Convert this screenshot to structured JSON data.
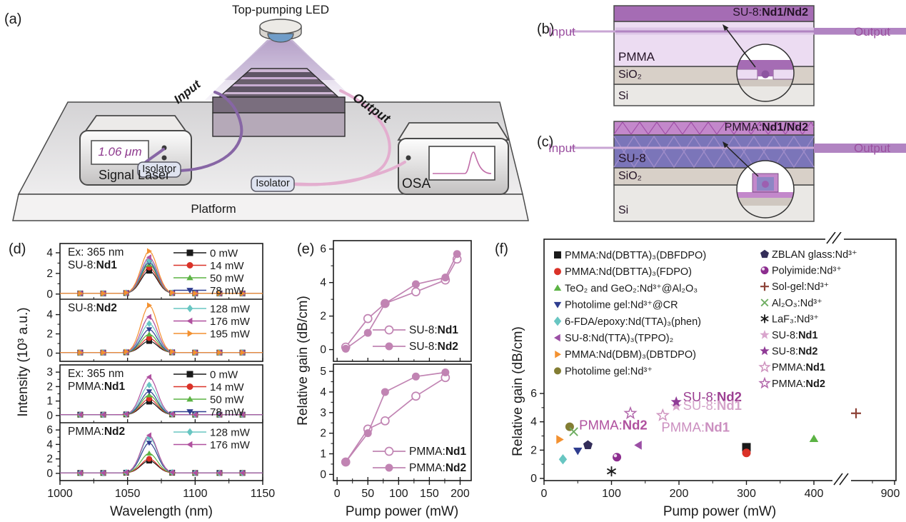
{
  "panel_a": {
    "label": "(a)",
    "led_label": "Top-pumping LED",
    "input_label": "Input",
    "output_label": "Output",
    "laser_display": "1.06 μm",
    "laser_label": "Signal Laser",
    "isolator1_label": "Isolator",
    "isolator2_label": "Isolator",
    "osa_label": "OSA",
    "platform_label": "Platform"
  },
  "panel_b": {
    "label": "(b)",
    "input_label": "Input",
    "output_label": "Output",
    "top_layer_prefix": "SU-8:",
    "top_layer_bold": "Nd1/Nd2",
    "core_layer": "PMMA",
    "oxide_layer": "SiO₂",
    "substrate_layer": "Si"
  },
  "panel_c": {
    "label": "(c)",
    "input_label": "Input",
    "output_label": "Output",
    "top_layer_prefix": "PMMA:",
    "top_layer_bold": "Nd1/Nd2",
    "core_layer": "SU-8",
    "oxide_layer": "SiO₂",
    "substrate_layer": "Si"
  },
  "chart_data": [
    {
      "id": "d",
      "panel_label": "(d)",
      "type": "line",
      "xlabel": "Wavelength (nm)",
      "ylabel": "Intensity (10³ a.u.)",
      "xlim": [
        1000,
        1150
      ],
      "xticks": [
        1000,
        1050,
        1100,
        1150
      ],
      "xminorticks": [
        1025,
        1075,
        1125
      ],
      "peak_center_nm": 1066,
      "marker_wavelengths": [
        1015,
        1032,
        1049,
        1066,
        1083,
        1100,
        1118,
        1135
      ],
      "pump_series": [
        {
          "label": "0 mW",
          "marker": "square",
          "color": "#1a1a1a"
        },
        {
          "label": "14 mW",
          "marker": "circle",
          "color": "#da3228"
        },
        {
          "label": "50 mW",
          "marker": "triangle-up",
          "color": "#5cb344"
        },
        {
          "label": "78 mW",
          "marker": "triangle-down",
          "color": "#2f3d8f"
        },
        {
          "label": "128 mW",
          "marker": "diamond",
          "color": "#68c6c2"
        },
        {
          "label": "176 mW",
          "marker": "triangle-left",
          "color": "#b0519f"
        },
        {
          "label": "195 mW",
          "marker": "triangle-right",
          "color": "#f39130"
        }
      ],
      "subplots": [
        {
          "ex_label": "Ex: 365 nm",
          "name_prefix": "SU-8:",
          "name_bold": "Nd1",
          "yticks": [
            0,
            2,
            4
          ],
          "ylim": [
            -0.5,
            4.9
          ],
          "peak_intensities": [
            2.2,
            2.5,
            2.8,
            3.0,
            3.2,
            3.5,
            4.1
          ],
          "legend_indices": [
            0,
            1,
            2,
            3
          ]
        },
        {
          "ex_label": "",
          "name_prefix": "SU-8:",
          "name_bold": "Nd2",
          "yticks": [
            0,
            2,
            4
          ],
          "ylim": [
            -0.85,
            5.6
          ],
          "peak_intensities": [
            1.2,
            1.5,
            1.9,
            2.4,
            3.0,
            3.7,
            4.9
          ],
          "legend_indices": [
            4,
            5,
            6
          ]
        },
        {
          "ex_label": "Ex: 365 nm",
          "name_prefix": "PMMA:",
          "name_bold": "Nd1",
          "yticks": [
            0,
            1,
            2,
            3
          ],
          "ylim": [
            -0.5,
            3.5
          ],
          "peak_intensities": [
            0.9,
            1.1,
            1.35,
            1.6,
            2.05,
            2.6
          ],
          "legend_indices": [
            0,
            1,
            2,
            3
          ]
        },
        {
          "ex_label": "",
          "name_prefix": "PMMA:",
          "name_bold": "Nd2",
          "yticks": [
            0,
            2,
            4,
            6
          ],
          "ylim": [
            -1,
            7
          ],
          "peak_intensities": [
            1.7,
            1.95,
            2.7,
            4.15,
            4.9,
            5.2
          ],
          "legend_indices": [
            4,
            5
          ]
        }
      ]
    },
    {
      "id": "e",
      "panel_label": "(e)",
      "type": "line",
      "xlabel": "Pump power (mW)",
      "ylabel": "Relative gain (dB/cm)",
      "xlim": [
        -6,
        218
      ],
      "xticks": [
        0,
        50,
        100,
        150,
        200
      ],
      "xminorticks": [
        25,
        75,
        125,
        175
      ],
      "line_color": "#c184b3",
      "subplots": [
        {
          "yticks": [
            0,
            2,
            4,
            6
          ],
          "ylim": [
            -0.7,
            6.5
          ],
          "series": [
            {
              "name_prefix": "SU-8:",
              "name_bold": "Nd1",
              "marker_fill": "open",
              "x": [
                14,
                50,
                78,
                128,
                176,
                195
              ],
              "y": [
                0.15,
                1.85,
                2.75,
                3.45,
                4.15,
                5.4
              ]
            },
            {
              "name_prefix": "SU-8:",
              "name_bold": "Nd2",
              "marker_fill": "filled",
              "x": [
                14,
                50,
                78,
                128,
                176,
                195
              ],
              "y": [
                0.05,
                1.0,
                2.75,
                3.9,
                4.3,
                5.7
              ]
            }
          ]
        },
        {
          "yticks": [
            0,
            1,
            2,
            3,
            4,
            5
          ],
          "ylim": [
            -0.3,
            5.35
          ],
          "series": [
            {
              "name_prefix": "PMMA:",
              "name_bold": "Nd1",
              "marker_fill": "open",
              "x": [
                14,
                50,
                78,
                128,
                176
              ],
              "y": [
                0.6,
                2.2,
                2.6,
                3.8,
                4.7
              ]
            },
            {
              "name_prefix": "PMMA:",
              "name_bold": "Nd2",
              "marker_fill": "filled",
              "x": [
                14,
                50,
                78,
                128,
                176
              ],
              "y": [
                0.6,
                2.0,
                4.0,
                4.75,
                4.95
              ]
            }
          ]
        }
      ]
    },
    {
      "id": "f",
      "panel_label": "(f)",
      "type": "scatter",
      "xlabel": "Pump power (mW)",
      "ylabel": "Relative gain (dB/cm)",
      "xticks": [
        0,
        100,
        200,
        300,
        400
      ],
      "xtick_after_break": 900,
      "xminorticks": [
        50,
        150,
        250,
        350
      ],
      "yticks": [
        0,
        2,
        4,
        6
      ],
      "axis_break_between": [
        400,
        900
      ],
      "legend_left": [
        {
          "marker": "square",
          "color": "#1a1a1a",
          "text": "PMMA:Nd(DBTTA)₃(DBFDPO)"
        },
        {
          "marker": "circle",
          "color": "#da3228",
          "text": "PMMA:Nd(DBTTA)₃(FDPO)"
        },
        {
          "marker": "triangle-up",
          "color": "#5cb344",
          "text": "TeO₂ and GeO₂:Nd³⁺@Al₂O₃"
        },
        {
          "marker": "triangle-down",
          "color": "#2f3d8f",
          "text": "Photolime gel:Nd³⁺@CR"
        },
        {
          "marker": "diamond",
          "color": "#68c6c2",
          "text": "6-FDA/epoxy:Nd(TTA)₃(phen)"
        },
        {
          "marker": "triangle-left",
          "color": "#9b4fa5",
          "text": "SU-8:Nd(TTA)₃(TPPO)₂"
        },
        {
          "marker": "triangle-right",
          "color": "#f39130",
          "text": "PMMA:Nd(DBM)₃(DBTDPO)"
        },
        {
          "marker": "circle",
          "color": "#837d33",
          "text": "Photolime gel:Nd³⁺"
        }
      ],
      "legend_right": [
        {
          "marker": "pentagon",
          "color": "#332d59",
          "text": "ZBLAN glass:Nd³⁺"
        },
        {
          "marker": "sphere",
          "color": "#8c2d8f",
          "text": "Polyimide:Nd³⁺"
        },
        {
          "marker": "plus",
          "color": "#8c4136",
          "text": "Sol-gel:Nd³⁺"
        },
        {
          "marker": "x",
          "color": "#6fae62",
          "text": "Al₂O₃:Nd³⁺"
        },
        {
          "marker": "asterisk",
          "color": "#1a1a1a",
          "text": "LaF₃:Nd³⁺"
        },
        {
          "marker": "star",
          "color": "#d9a5cd",
          "text": "SU-8:",
          "bold": "Nd1"
        },
        {
          "marker": "star",
          "color": "#8f3b96",
          "text": "SU-8:",
          "bold": "Nd2"
        },
        {
          "marker": "star-open",
          "color": "#cf94bf",
          "text": "PMMA:",
          "bold": "Nd1"
        },
        {
          "marker": "star-open",
          "color": "#b268ab",
          "text": "PMMA:",
          "bold": "Nd2"
        }
      ],
      "points": [
        {
          "label": "PMMA:Nd(DBTTA)₃(DBFDPO)",
          "x": 300,
          "y": 2.2,
          "marker": "square",
          "color": "#1a1a1a"
        },
        {
          "label": "PMMA:Nd(DBTTA)₃(FDPO)",
          "x": 300,
          "y": 1.8,
          "marker": "circle",
          "color": "#da3228"
        },
        {
          "label": "TeO₂ and GeO₂:Nd³⁺@Al₂O₃",
          "x": 400,
          "y": 2.8,
          "marker": "triangle-up",
          "color": "#5cb344"
        },
        {
          "label": "Photolime gel:Nd³⁺@CR",
          "x": 50,
          "y": 1.95,
          "marker": "triangle-down",
          "color": "#2f3d8f"
        },
        {
          "label": "6-FDA/epoxy:Nd(TTA)₃(phen)",
          "x": 28,
          "y": 1.35,
          "marker": "diamond",
          "color": "#68c6c2"
        },
        {
          "label": "SU-8:Nd(TTA)₃(TPPO)₂",
          "x": 140,
          "y": 2.35,
          "marker": "triangle-left",
          "color": "#9b4fa5"
        },
        {
          "label": "PMMA:Nd(DBM)₃(DBTDPO)",
          "x": 23,
          "y": 2.75,
          "marker": "triangle-right",
          "color": "#f39130"
        },
        {
          "label": "Photolime gel:Nd³⁺",
          "x": 38,
          "y": 3.65,
          "marker": "circle",
          "color": "#837d33"
        },
        {
          "label": "ZBLAN glass:Nd³⁺",
          "x": 65,
          "y": 2.35,
          "marker": "pentagon",
          "color": "#332d59"
        },
        {
          "label": "Polyimide:Nd³⁺",
          "x": 108,
          "y": 1.5,
          "marker": "sphere",
          "color": "#8c2d8f"
        },
        {
          "label": "Sol-gel:Nd³⁺",
          "x": 865,
          "y": 4.6,
          "marker": "plus",
          "color": "#8c4136",
          "after_break": true
        },
        {
          "label": "Al₂O₃:Nd³⁺",
          "x": 44,
          "y": 3.3,
          "marker": "x",
          "color": "#6fae62"
        },
        {
          "label": "LaF₃:Nd³⁺",
          "x": 100,
          "y": 0.5,
          "marker": "asterisk",
          "color": "#1a1a1a"
        },
        {
          "label": "SU-8:Nd1",
          "x": 196,
          "y": 5.1,
          "marker": "star",
          "color": "#d9a5cd"
        },
        {
          "label": "SU-8:Nd2",
          "x": 196,
          "y": 5.4,
          "marker": "star",
          "color": "#8f3b96"
        },
        {
          "label": "PMMA:Nd2",
          "x": 128,
          "y": 4.6,
          "marker": "star-open",
          "color": "#b268ab"
        },
        {
          "label": "PMMA:Nd1",
          "x": 176,
          "y": 4.45,
          "marker": "star-open",
          "color": "#cf94bf"
        }
      ],
      "annotations": [
        {
          "text_prefix": "PMMA:",
          "text_bold": "Nd2",
          "color": "#b0519f",
          "x": 52,
          "y": 3.45
        },
        {
          "text_prefix": "PMMA:",
          "text_bold": "Nd1",
          "color": "#cb8fc0",
          "x": 174,
          "y": 3.3
        },
        {
          "text_prefix": "SU-8:",
          "text_bold": "Nd2",
          "color": "#9c3f92",
          "x": 206,
          "y": 5.45
        },
        {
          "text_prefix": "SU-8:",
          "text_bold": "Nd1",
          "color": "#d4a3c9",
          "x": 206,
          "y": 4.85
        }
      ]
    }
  ]
}
